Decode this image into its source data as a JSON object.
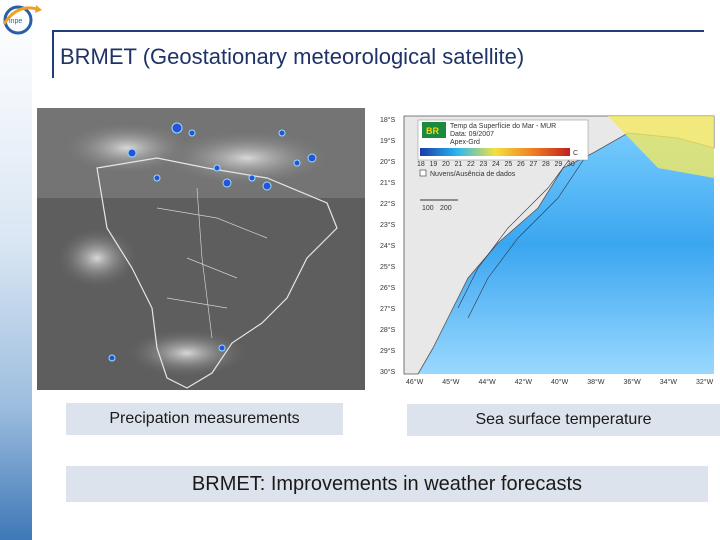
{
  "slide": {
    "title": "BRMET (Geostationary meteorological satellite)",
    "logo_icon": "inpe-logo-icon"
  },
  "figures": [
    {
      "name": "precipitation-satellite-image",
      "caption": "Precipation measurements"
    },
    {
      "name": "sea-surface-temperature-map",
      "caption": "Sea surface temperature",
      "map_header": [
        "Temp da Superfície do Mar - MUR",
        "Data: 09/2007",
        "Apex-Grd"
      ],
      "colorbar_labels": [
        "18",
        "19",
        "20",
        "21",
        "22",
        "23",
        "24",
        "25",
        "26",
        "27",
        "28",
        "29",
        "30"
      ],
      "colorbar_unit": "C",
      "legend_text": "Nuvens/Ausência de dados",
      "scale_labels": [
        "100",
        "200"
      ],
      "lat_labels": [
        "18°S",
        "19°S",
        "20°S",
        "21°S",
        "22°S",
        "23°S",
        "24°S",
        "25°S",
        "26°S",
        "27°S",
        "28°S",
        "29°S",
        "30°S"
      ],
      "lon_labels": [
        "46°W",
        "45°W",
        "44°W",
        "42°W",
        "40°W",
        "38°W",
        "36°W",
        "34°W",
        "32°W"
      ]
    }
  ],
  "banner": {
    "text": "BRMET: Improvements in weather forecasts"
  },
  "colors": {
    "title": "#1f3366",
    "caption_bg": "#dde3ec",
    "accent_blue": "#1f3f7a"
  }
}
